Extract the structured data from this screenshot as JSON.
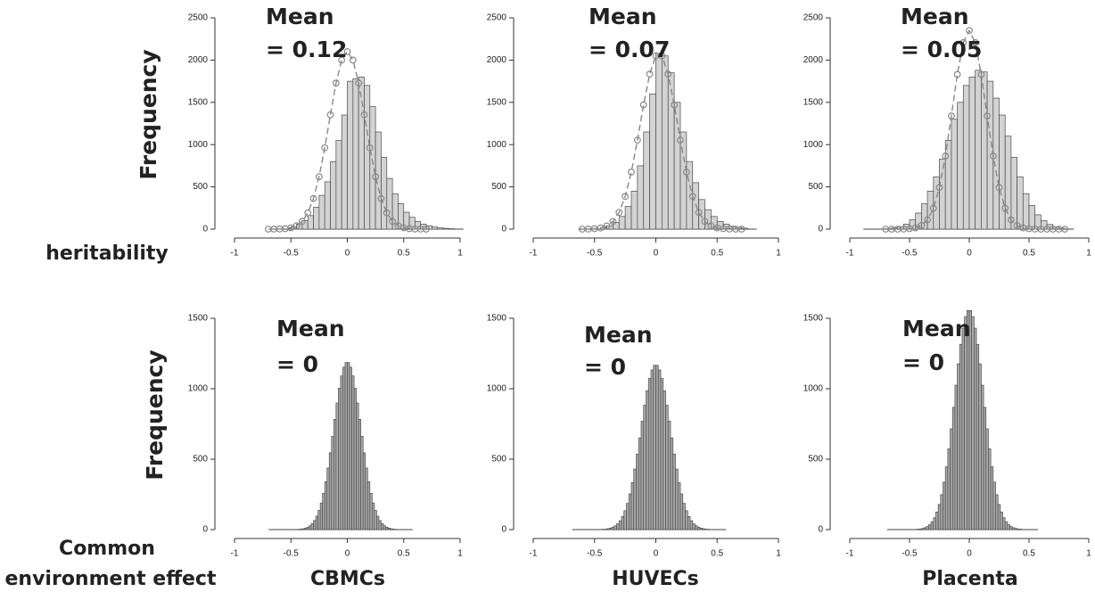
{
  "row_labels": [
    "heritability",
    [
      "Common",
      "environment effect"
    ]
  ],
  "chart_data": [
    {
      "type": "histogram",
      "ylabel": "Frequency",
      "annotation": [
        "Mean",
        "= 0.12"
      ],
      "bins": [
        -0.5,
        -0.45,
        -0.4,
        -0.35,
        -0.3,
        -0.25,
        -0.2,
        -0.15,
        -0.1,
        -0.05,
        0,
        0.05,
        0.1,
        0.15,
        0.2,
        0.25,
        0.3,
        0.35,
        0.4,
        0.45,
        0.5,
        0.55,
        0.6,
        0.65,
        0.7,
        0.75,
        0.8,
        0.85,
        0.9,
        0.95
      ],
      "values": [
        30,
        60,
        100,
        160,
        260,
        400,
        560,
        800,
        1050,
        1350,
        1750,
        1780,
        1800,
        1700,
        1450,
        1150,
        850,
        600,
        420,
        300,
        200,
        140,
        90,
        60,
        40,
        25,
        15,
        10,
        5
      ],
      "color": "#d3d3d3",
      "curve": {
        "color": "#888888",
        "x": [
          -0.7,
          -0.65,
          -0.6,
          -0.55,
          -0.5,
          -0.45,
          -0.4,
          -0.35,
          -0.3,
          -0.25,
          -0.2,
          -0.15,
          -0.1,
          -0.05,
          0,
          0.05,
          0.1,
          0.15,
          0.2,
          0.25,
          0.3,
          0.35,
          0.4,
          0.45,
          0.5,
          0.55,
          0.6,
          0.65,
          0.7
        ],
        "values": [
          0,
          1,
          2,
          6,
          16,
          40,
          92,
          192,
          362,
          620,
          962,
          1353,
          1728,
          2000,
          2100,
          2000,
          1728,
          1353,
          962,
          620,
          362,
          192,
          92,
          40,
          16,
          6,
          2,
          1,
          0
        ]
      },
      "xlim": [
        -1,
        1
      ],
      "ylim": [
        0,
        2500
      ],
      "xticks": [
        -1,
        -0.5,
        0,
        0.5,
        1
      ],
      "yticks": [
        0,
        500,
        1000,
        1500,
        2000,
        2500
      ]
    },
    {
      "type": "histogram",
      "annotation": [
        "Mean",
        "= 0.07"
      ],
      "bins": [
        -0.45,
        -0.4,
        -0.35,
        -0.3,
        -0.25,
        -0.2,
        -0.15,
        -0.1,
        -0.05,
        0,
        0.05,
        0.1,
        0.15,
        0.2,
        0.25,
        0.3,
        0.35,
        0.4,
        0.45,
        0.5,
        0.55,
        0.6,
        0.65,
        0.7,
        0.75
      ],
      "values": [
        20,
        40,
        80,
        150,
        270,
        450,
        750,
        1150,
        1600,
        2080,
        2050,
        1850,
        1500,
        1150,
        800,
        550,
        350,
        230,
        150,
        90,
        60,
        35,
        20,
        10
      ],
      "color": "#d3d3d3",
      "curve": {
        "color": "#888888",
        "x": [
          -0.6,
          -0.55,
          -0.5,
          -0.45,
          -0.4,
          -0.35,
          -0.3,
          -0.25,
          -0.2,
          -0.15,
          -0.1,
          -0.05,
          0,
          0.05,
          0.1,
          0.15,
          0.2,
          0.25,
          0.3,
          0.35,
          0.4,
          0.45,
          0.5,
          0.55,
          0.6,
          0.65,
          0.7
        ],
        "values": [
          0,
          1,
          5,
          14,
          38,
          91,
          198,
          387,
          675,
          1054,
          1470,
          1835,
          2051,
          2051,
          1835,
          1470,
          1054,
          675,
          387,
          198,
          91,
          38,
          14,
          5,
          1,
          0,
          0
        ]
      },
      "xlim": [
        -1,
        1
      ],
      "ylim": [
        0,
        2500
      ],
      "xticks": [
        -1,
        -0.5,
        0,
        0.5,
        1
      ],
      "yticks": [
        0,
        500,
        1000,
        1500,
        2000,
        2500
      ]
    },
    {
      "type": "histogram",
      "annotation": [
        "Mean",
        "= 0.05"
      ],
      "bins": [
        -0.7,
        -0.65,
        -0.6,
        -0.55,
        -0.5,
        -0.45,
        -0.4,
        -0.35,
        -0.3,
        -0.25,
        -0.2,
        -0.15,
        -0.1,
        -0.05,
        0,
        0.05,
        0.1,
        0.15,
        0.2,
        0.25,
        0.3,
        0.35,
        0.4,
        0.45,
        0.5,
        0.55,
        0.6,
        0.65,
        0.7,
        0.75,
        0.8
      ],
      "values": [
        5,
        15,
        30,
        60,
        110,
        190,
        300,
        450,
        620,
        830,
        1050,
        1300,
        1500,
        1700,
        1800,
        1880,
        1860,
        1750,
        1550,
        1350,
        1100,
        850,
        620,
        420,
        280,
        170,
        100,
        55,
        25,
        10
      ],
      "color": "#d3d3d3",
      "curve": {
        "color": "#888888",
        "x": [
          -0.7,
          -0.65,
          -0.6,
          -0.55,
          -0.5,
          -0.45,
          -0.4,
          -0.35,
          -0.3,
          -0.25,
          -0.2,
          -0.15,
          -0.1,
          -0.05,
          0,
          0.05,
          0.1,
          0.15,
          0.2,
          0.25,
          0.3,
          0.35,
          0.4,
          0.45,
          0.5,
          0.55,
          0.6,
          0.65,
          0.7,
          0.75,
          0.8
        ],
        "values": [
          0,
          0,
          0,
          1,
          5,
          15,
          43,
          110,
          247,
          493,
          865,
          1339,
          1830,
          2207,
          2350,
          2207,
          1830,
          1339,
          865,
          493,
          247,
          110,
          43,
          15,
          5,
          1,
          0,
          0,
          0,
          0,
          0
        ]
      },
      "xlim": [
        -1,
        1
      ],
      "ylim": [
        0,
        2500
      ],
      "xticks": [
        -1,
        -0.5,
        0,
        0.5,
        1
      ],
      "yticks": [
        0,
        500,
        1000,
        1500,
        2000,
        2500
      ]
    },
    {
      "type": "histogram",
      "ylabel": "Frequency",
      "xlabel": "CBMCs",
      "annotation": [
        "Mean",
        "= 0"
      ],
      "bins": [
        -0.5,
        -0.48,
        -0.46,
        -0.44,
        -0.42,
        -0.4,
        -0.38,
        -0.36,
        -0.34,
        -0.32,
        -0.3,
        -0.28,
        -0.26,
        -0.24,
        -0.22,
        -0.2,
        -0.18,
        -0.16,
        -0.14,
        -0.12,
        -0.1,
        -0.08,
        -0.06,
        -0.04,
        -0.02,
        0,
        0.02,
        0.04,
        0.06,
        0.08,
        0.1,
        0.12,
        0.14,
        0.16,
        0.18,
        0.2,
        0.22,
        0.24,
        0.26,
        0.28,
        0.3,
        0.32,
        0.34,
        0.36,
        0.38,
        0.4,
        0.42,
        0.44,
        0.46,
        0.48,
        0.5
      ],
      "values": [
        1,
        1,
        1,
        2,
        3,
        6,
        10,
        17,
        27,
        42,
        64,
        95,
        136,
        189,
        257,
        340,
        437,
        545,
        662,
        782,
        898,
        1003,
        1091,
        1153,
        1186,
        1186,
        1153,
        1091,
        1003,
        898,
        782,
        662,
        545,
        437,
        340,
        257,
        189,
        136,
        95,
        64,
        42,
        27,
        17,
        10,
        6,
        3,
        2,
        1,
        1,
        1
      ],
      "color": "#a9a9a9",
      "xlim": [
        -1,
        1
      ],
      "ylim": [
        0,
        1500
      ],
      "xticks": [
        -1,
        -0.5,
        0,
        0.5,
        1
      ],
      "yticks": [
        0,
        500,
        1000,
        1500
      ]
    },
    {
      "type": "histogram",
      "xlabel": "HUVECs",
      "annotation": [
        "Mean",
        "= 0"
      ],
      "bins": [
        -0.5,
        -0.48,
        -0.46,
        -0.44,
        -0.42,
        -0.4,
        -0.38,
        -0.36,
        -0.34,
        -0.32,
        -0.3,
        -0.28,
        -0.26,
        -0.24,
        -0.22,
        -0.2,
        -0.18,
        -0.16,
        -0.14,
        -0.12,
        -0.1,
        -0.08,
        -0.06,
        -0.04,
        -0.02,
        0,
        0.02,
        0.04,
        0.06,
        0.08,
        0.1,
        0.12,
        0.14,
        0.16,
        0.18,
        0.2,
        0.22,
        0.24,
        0.26,
        0.28,
        0.3,
        0.32,
        0.34,
        0.36,
        0.38,
        0.4,
        0.42,
        0.44,
        0.46,
        0.48,
        0.5
      ],
      "values": [
        1,
        1,
        1,
        2,
        3,
        6,
        10,
        17,
        27,
        41,
        63,
        93,
        134,
        186,
        253,
        334,
        430,
        536,
        651,
        769,
        883,
        986,
        1073,
        1133,
        1166,
        1166,
        1133,
        1073,
        986,
        883,
        769,
        651,
        536,
        430,
        334,
        253,
        186,
        134,
        93,
        63,
        41,
        27,
        17,
        10,
        6,
        3,
        2,
        1,
        1,
        1
      ],
      "color": "#a9a9a9",
      "xlim": [
        -1,
        1
      ],
      "ylim": [
        0,
        1500
      ],
      "xticks": [
        -1,
        -0.5,
        0,
        0.5,
        1
      ],
      "yticks": [
        0,
        500,
        1000,
        1500
      ]
    },
    {
      "type": "histogram",
      "xlabel": "Placenta",
      "annotation": [
        "Mean",
        "= 0"
      ],
      "bins": [
        -0.5,
        -0.48,
        -0.46,
        -0.44,
        -0.42,
        -0.4,
        -0.38,
        -0.36,
        -0.34,
        -0.32,
        -0.3,
        -0.28,
        -0.26,
        -0.24,
        -0.22,
        -0.2,
        -0.18,
        -0.16,
        -0.14,
        -0.12,
        -0.1,
        -0.08,
        -0.06,
        -0.04,
        -0.02,
        0,
        0.02,
        0.04,
        0.06,
        0.08,
        0.1,
        0.12,
        0.14,
        0.16,
        0.18,
        0.2,
        0.22,
        0.24,
        0.26,
        0.28,
        0.3,
        0.32,
        0.34,
        0.36,
        0.38,
        0.4,
        0.42,
        0.44,
        0.46,
        0.48,
        0.5
      ],
      "values": [
        1,
        1,
        1,
        3,
        4,
        8,
        13,
        22,
        35,
        55,
        84,
        125,
        178,
        248,
        337,
        446,
        573,
        715,
        868,
        1025,
        1177,
        1315,
        1430,
        1512,
        1555,
        1555,
        1512,
        1430,
        1315,
        1177,
        1025,
        868,
        715,
        573,
        446,
        337,
        248,
        178,
        125,
        84,
        55,
        35,
        22,
        13,
        8,
        4,
        3,
        1,
        1,
        1
      ],
      "color": "#a9a9a9",
      "xlim": [
        -1,
        1
      ],
      "ylim": [
        0,
        1500
      ],
      "xticks": [
        -1,
        -0.5,
        0,
        0.5,
        1
      ],
      "yticks": [
        0,
        500,
        1000,
        1500
      ]
    }
  ]
}
